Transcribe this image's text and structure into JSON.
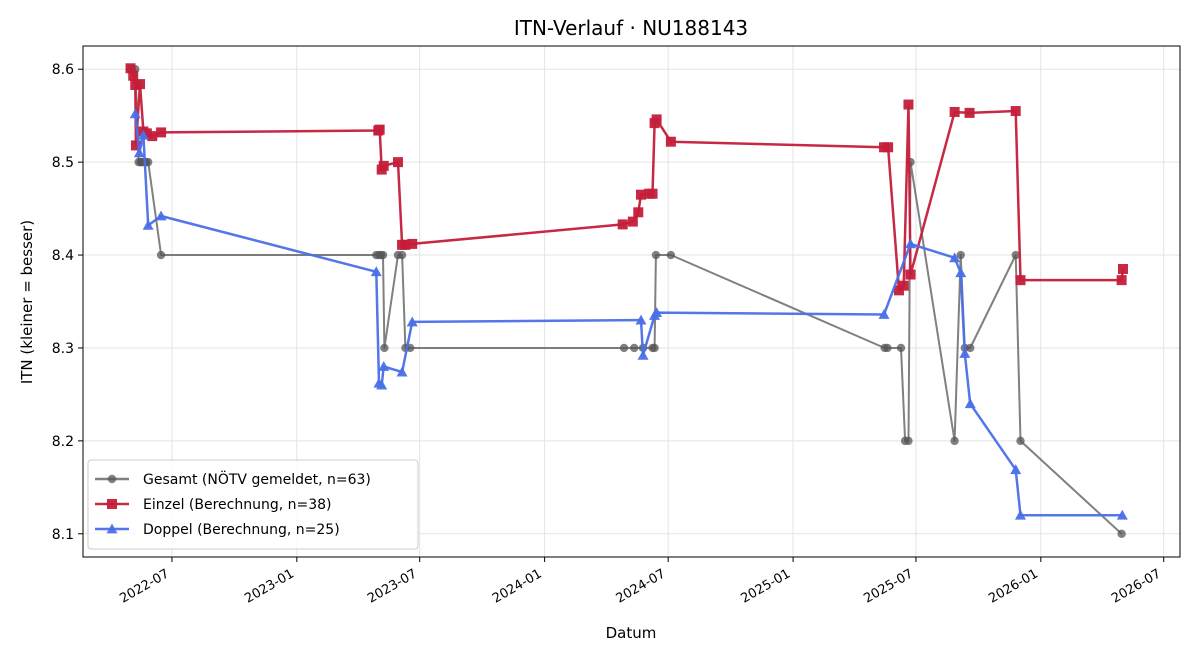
{
  "chart_data": {
    "type": "line",
    "title": "ITN-Verlauf · NU188143",
    "xlabel": "Datum",
    "ylabel": "ITN  (kleiner = besser)",
    "xlim": [
      "2022-02-20",
      "2026-07-25"
    ],
    "ylim": [
      8.075,
      8.625
    ],
    "x_ticks": [
      "2022-07",
      "2023-01",
      "2023-07",
      "2024-01",
      "2024-07",
      "2025-01",
      "2025-07",
      "2026-01",
      "2026-07"
    ],
    "y_ticks": [
      "8.1",
      "8.2",
      "8.3",
      "8.4",
      "8.5",
      "8.6"
    ],
    "grid": true,
    "legend_position": "lower-left",
    "series": [
      {
        "name": "Gesamt (NÖTV gemeldet, n=63)",
        "color": "#555555",
        "marker": "circle",
        "points": [
          {
            "x": "2022-05-01",
            "y": 8.6
          },
          {
            "x": "2022-05-03",
            "y": 8.6
          },
          {
            "x": "2022-05-08",
            "y": 8.6
          },
          {
            "x": "2022-05-13",
            "y": 8.5
          },
          {
            "x": "2022-05-16",
            "y": 8.5
          },
          {
            "x": "2022-05-18",
            "y": 8.5
          },
          {
            "x": "2022-05-21",
            "y": 8.5
          },
          {
            "x": "2022-05-24",
            "y": 8.5
          },
          {
            "x": "2022-05-27",
            "y": 8.5
          },
          {
            "x": "2022-06-15",
            "y": 8.4
          },
          {
            "x": "2023-04-28",
            "y": 8.4
          },
          {
            "x": "2023-05-02",
            "y": 8.4
          },
          {
            "x": "2023-05-05",
            "y": 8.4
          },
          {
            "x": "2023-05-08",
            "y": 8.4
          },
          {
            "x": "2023-05-10",
            "y": 8.3
          },
          {
            "x": "2023-05-30",
            "y": 8.4
          },
          {
            "x": "2023-06-05",
            "y": 8.4
          },
          {
            "x": "2023-06-10",
            "y": 8.3
          },
          {
            "x": "2023-06-17",
            "y": 8.3
          },
          {
            "x": "2024-04-27",
            "y": 8.3
          },
          {
            "x": "2024-05-12",
            "y": 8.3
          },
          {
            "x": "2024-05-25",
            "y": 8.3
          },
          {
            "x": "2024-06-08",
            "y": 8.3
          },
          {
            "x": "2024-06-11",
            "y": 8.3
          },
          {
            "x": "2024-06-13",
            "y": 8.4
          },
          {
            "x": "2024-07-05",
            "y": 8.4
          },
          {
            "x": "2025-05-16",
            "y": 8.3
          },
          {
            "x": "2025-05-20",
            "y": 8.3
          },
          {
            "x": "2025-06-09",
            "y": 8.3
          },
          {
            "x": "2025-06-15",
            "y": 8.2
          },
          {
            "x": "2025-06-20",
            "y": 8.2
          },
          {
            "x": "2025-06-23",
            "y": 8.5
          },
          {
            "x": "2025-08-27",
            "y": 8.2
          },
          {
            "x": "2025-09-05",
            "y": 8.4
          },
          {
            "x": "2025-09-11",
            "y": 8.3
          },
          {
            "x": "2025-09-19",
            "y": 8.3
          },
          {
            "x": "2025-11-25",
            "y": 8.4
          },
          {
            "x": "2025-12-02",
            "y": 8.2
          },
          {
            "x": "2026-04-30",
            "y": 8.1
          }
        ]
      },
      {
        "name": "Einzel (Berechnung, n=38)",
        "color": "#c41e3a",
        "marker": "square",
        "points": [
          {
            "x": "2022-05-01",
            "y": 8.601
          },
          {
            "x": "2022-05-05",
            "y": 8.593
          },
          {
            "x": "2022-05-08",
            "y": 8.583
          },
          {
            "x": "2022-05-09",
            "y": 8.518
          },
          {
            "x": "2022-05-15",
            "y": 8.584
          },
          {
            "x": "2022-05-20",
            "y": 8.533
          },
          {
            "x": "2022-05-25",
            "y": 8.531
          },
          {
            "x": "2022-06-02",
            "y": 8.528
          },
          {
            "x": "2022-06-15",
            "y": 8.532
          },
          {
            "x": "2023-05-01",
            "y": 8.534
          },
          {
            "x": "2023-05-03",
            "y": 8.535
          },
          {
            "x": "2023-05-06",
            "y": 8.492
          },
          {
            "x": "2023-05-09",
            "y": 8.496
          },
          {
            "x": "2023-05-30",
            "y": 8.5
          },
          {
            "x": "2023-06-05",
            "y": 8.411
          },
          {
            "x": "2023-06-10",
            "y": 8.411
          },
          {
            "x": "2023-06-20",
            "y": 8.412
          },
          {
            "x": "2024-04-25",
            "y": 8.433
          },
          {
            "x": "2024-05-10",
            "y": 8.436
          },
          {
            "x": "2024-05-18",
            "y": 8.446
          },
          {
            "x": "2024-05-22",
            "y": 8.465
          },
          {
            "x": "2024-06-03",
            "y": 8.466
          },
          {
            "x": "2024-06-08",
            "y": 8.466
          },
          {
            "x": "2024-06-11",
            "y": 8.542
          },
          {
            "x": "2024-06-14",
            "y": 8.546
          },
          {
            "x": "2024-07-05",
            "y": 8.522
          },
          {
            "x": "2025-05-15",
            "y": 8.516
          },
          {
            "x": "2025-05-21",
            "y": 8.516
          },
          {
            "x": "2025-06-06",
            "y": 8.362
          },
          {
            "x": "2025-06-13",
            "y": 8.367
          },
          {
            "x": "2025-06-20",
            "y": 8.562
          },
          {
            "x": "2025-06-23",
            "y": 8.379
          },
          {
            "x": "2025-08-27",
            "y": 8.554
          },
          {
            "x": "2025-09-18",
            "y": 8.553
          },
          {
            "x": "2025-11-25",
            "y": 8.555
          },
          {
            "x": "2025-12-02",
            "y": 8.373
          },
          {
            "x": "2026-04-30",
            "y": 8.373
          },
          {
            "x": "2026-05-02",
            "y": 8.385
          }
        ]
      },
      {
        "name": "Doppel (Berechnung, n=25)",
        "color": "#4a6fe8",
        "marker": "triangle",
        "points": [
          {
            "x": "2022-05-08",
            "y": 8.552
          },
          {
            "x": "2022-05-14",
            "y": 8.51
          },
          {
            "x": "2022-05-20",
            "y": 8.529
          },
          {
            "x": "2022-05-27",
            "y": 8.432
          },
          {
            "x": "2022-06-15",
            "y": 8.442
          },
          {
            "x": "2023-04-28",
            "y": 8.382
          },
          {
            "x": "2023-05-02",
            "y": 8.262
          },
          {
            "x": "2023-05-06",
            "y": 8.26
          },
          {
            "x": "2023-05-09",
            "y": 8.28
          },
          {
            "x": "2023-06-05",
            "y": 8.274
          },
          {
            "x": "2023-06-20",
            "y": 8.328
          },
          {
            "x": "2024-05-22",
            "y": 8.33
          },
          {
            "x": "2024-05-25",
            "y": 8.292
          },
          {
            "x": "2024-06-11",
            "y": 8.335
          },
          {
            "x": "2024-06-14",
            "y": 8.338
          },
          {
            "x": "2025-05-15",
            "y": 8.336
          },
          {
            "x": "2025-06-23",
            "y": 8.412
          },
          {
            "x": "2025-08-27",
            "y": 8.397
          },
          {
            "x": "2025-09-05",
            "y": 8.381
          },
          {
            "x": "2025-09-11",
            "y": 8.294
          },
          {
            "x": "2025-09-19",
            "y": 8.24
          },
          {
            "x": "2025-11-25",
            "y": 8.169
          },
          {
            "x": "2025-12-02",
            "y": 8.12
          },
          {
            "x": "2026-05-01",
            "y": 8.12
          }
        ]
      }
    ]
  }
}
